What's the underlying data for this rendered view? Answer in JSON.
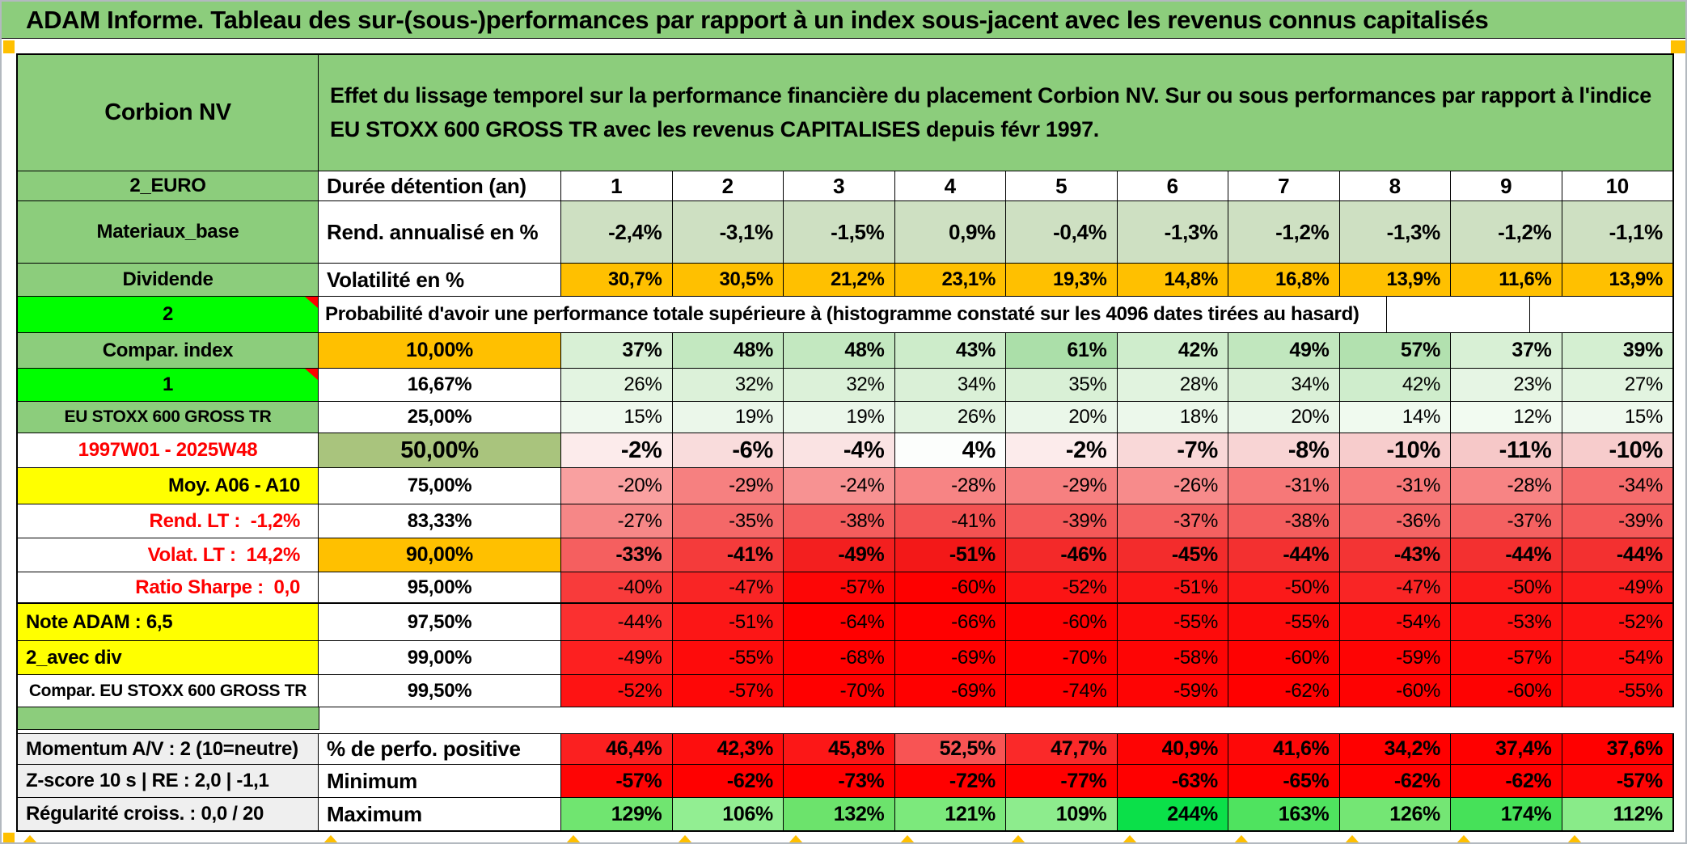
{
  "title": "ADAM Informe. Tableau des sur-(sous-)performances par rapport à un index sous-jacent avec les revenus connus capitalisés",
  "security": {
    "name": "Corbion NV",
    "description": "Effet du lissage temporel sur la performance financière du placement Corbion NV. Sur ou sous performances par rapport à l'indice EU STOXX 600 GROSS TR avec les revenus CAPITALISES depuis févr 1997."
  },
  "colors": {
    "header_green": "#8ccd7c",
    "bright_green": "#00fe00",
    "orange": "#ffc000",
    "yellow": "#ffff00",
    "olive": "#a9c47d",
    "sage": "#cee0c2",
    "label_gray": "#efefef",
    "red_text": "#fe0000",
    "comment_marker_red": "#ff0000",
    "full_red": "#ff0000",
    "corner_orange": "#ffc000"
  },
  "table": {
    "columns": [
      "1",
      "2",
      "3",
      "4",
      "5",
      "6",
      "7",
      "8",
      "9",
      "10"
    ],
    "rows": [
      {
        "kind": "desc"
      },
      {
        "kind": "header",
        "label": "2_EURO",
        "sub": "Durée détention (an)"
      },
      {
        "kind": "vals",
        "label": "Materiaux_base",
        "sub": "Rend. annualisé en %",
        "vals": [
          "-2,4%",
          "-3,1%",
          "-1,5%",
          "0,9%",
          "-0,4%",
          "-1,3%",
          "-1,2%",
          "-1,3%",
          "-1,2%",
          "-1,1%"
        ],
        "bg": "#cee0c2"
      },
      {
        "kind": "vals",
        "label": "Dividende",
        "sub": "Volatilité en %",
        "vals": [
          "30,7%",
          "30,5%",
          "21,2%",
          "23,1%",
          "19,3%",
          "14,8%",
          "16,8%",
          "13,9%",
          "11,6%",
          "13,9%"
        ],
        "bg": "#ffc000"
      },
      {
        "kind": "prob",
        "label": "2",
        "text": "Probabilité d'avoir une performance totale supérieure à (histogramme constaté sur les 4096 dates tirées au hasard)"
      },
      {
        "kind": "vals",
        "label": "Compar. index",
        "sub": "10,00%",
        "vals": [
          "37%",
          "48%",
          "48%",
          "43%",
          "61%",
          "42%",
          "49%",
          "57%",
          "37%",
          "39%"
        ],
        "bg": [
          "#d8f0d5",
          "#c3e8c0",
          "#c3e8c0",
          "#cdecca",
          "#abdfa9",
          "#cfedcc",
          "#c1e7be",
          "#b2e1af",
          "#d8f0d5",
          "#d4efd1"
        ]
      },
      {
        "kind": "vals",
        "label": "1",
        "sub": "16,67%",
        "vals": [
          "26%",
          "32%",
          "32%",
          "34%",
          "35%",
          "28%",
          "34%",
          "42%",
          "23%",
          "27%"
        ],
        "bg": [
          "#e3f4e1",
          "#dcf1d9",
          "#dcf1d9",
          "#daf0d7",
          "#d9f0d6",
          "#e1f3df",
          "#daf0d7",
          "#cfedcc",
          "#e6f5e4",
          "#e2f4e0"
        ]
      },
      {
        "kind": "vals",
        "label": "EU STOXX 600 GROSS TR",
        "sub": "25,00%",
        "vals": [
          "15%",
          "19%",
          "19%",
          "26%",
          "20%",
          "18%",
          "20%",
          "14%",
          "12%",
          "15%"
        ],
        "bg": [
          "#eff9ee",
          "#ebf7ea",
          "#ebf7ea",
          "#e3f4e1",
          "#eaf7e9",
          "#ecf8eb",
          "#eaf7e9",
          "#f0faef",
          "#f2fbf1",
          "#eff9ee"
        ]
      },
      {
        "kind": "vals",
        "label": "1997W01 - 2025W48",
        "sub": "50,00%",
        "vals": [
          "-2%",
          "-6%",
          "-4%",
          "4%",
          "-2%",
          "-7%",
          "-8%",
          "-10%",
          "-11%",
          "-10%"
        ],
        "bg": [
          "#fcebeb",
          "#f9dcdc",
          "#fae3e3",
          "#fcfefc",
          "#fcebeb",
          "#f9d8d8",
          "#f8d4d4",
          "#f7cccc",
          "#f6c8c8",
          "#f7cccc"
        ]
      },
      {
        "kind": "vals",
        "label": "Moy. A06 - A10",
        "sub": "75,00%",
        "vals": [
          "-20%",
          "-29%",
          "-24%",
          "-28%",
          "-29%",
          "-26%",
          "-31%",
          "-31%",
          "-28%",
          "-34%"
        ],
        "bg": [
          "#f9a0a0",
          "#f68080",
          "#f79292",
          "#f78484",
          "#f68080",
          "#f78b8b",
          "#f67878",
          "#f67878",
          "#f78484",
          "#f56c6c"
        ]
      },
      {
        "kind": "vals",
        "label": "Rend. LT :  -1,2%",
        "sub": "83,33%",
        "vals": [
          "-27%",
          "-35%",
          "-38%",
          "-41%",
          "-39%",
          "-37%",
          "-38%",
          "-36%",
          "-37%",
          "-39%"
        ],
        "bg": [
          "#f68787",
          "#f46868",
          "#f45d5d",
          "#f35252",
          "#f45959",
          "#f46161",
          "#f45d5d",
          "#f46565",
          "#f46161",
          "#f45959"
        ]
      },
      {
        "kind": "vals",
        "label": "Volat. LT :  14,2%",
        "sub": "90,00%",
        "vals": [
          "-33%",
          "-41%",
          "-49%",
          "-51%",
          "-46%",
          "-45%",
          "-44%",
          "-43%",
          "-44%",
          "-44%"
        ],
        "bg": [
          "#f55f5f",
          "#f43b3b",
          "#f31f1f",
          "#f31818",
          "#f32929",
          "#f32c2c",
          "#f33030",
          "#f33434",
          "#f33030",
          "#f33030"
        ]
      },
      {
        "kind": "vals",
        "label": "Ratio Sharpe :  0,0",
        "sub": "95,00%",
        "vals": [
          "-40%",
          "-47%",
          "-57%",
          "-60%",
          "-52%",
          "-51%",
          "-50%",
          "-47%",
          "-50%",
          "-49%"
        ],
        "bg": [
          "#f83b3b",
          "#f92525",
          "#fd0606",
          "#fe0000",
          "#fb1414",
          "#fb1616",
          "#fb1919",
          "#f92525",
          "#fb1919",
          "#fb1c1c"
        ]
      },
      {
        "kind": "vals",
        "label": "Note ADAM : 6,5",
        "sub": "97,50%",
        "vals": [
          "-44%",
          "-51%",
          "-64%",
          "-66%",
          "-60%",
          "-55%",
          "-55%",
          "-54%",
          "-53%",
          "-52%"
        ],
        "bg": [
          "#fb3030",
          "#fc1616",
          "#ff0000",
          "#ff0000",
          "#fe0202",
          "#fd0b0b",
          "#fd0b0b",
          "#fd0e0e",
          "#fd1111",
          "#fd1313"
        ]
      },
      {
        "kind": "vals",
        "label": "2_avec div",
        "sub": "99,00%",
        "vals": [
          "-49%",
          "-55%",
          "-68%",
          "-69%",
          "-70%",
          "-58%",
          "-60%",
          "-59%",
          "-57%",
          "-54%"
        ],
        "bg": [
          "#fd2020",
          "#fe0b0b",
          "#ff0000",
          "#ff0000",
          "#ff0000",
          "#fe0505",
          "#fe0202",
          "#fe0404",
          "#fe0707",
          "#fe0e0e"
        ]
      },
      {
        "kind": "vals",
        "label": "Compar. EU STOXX 600 GROSS TR",
        "sub": "99,50%",
        "vals": [
          "-52%",
          "-57%",
          "-70%",
          "-69%",
          "-74%",
          "-59%",
          "-62%",
          "-60%",
          "-60%",
          "-55%"
        ],
        "bg": [
          "#fe1313",
          "#fe0707",
          "#ff0000",
          "#ff0000",
          "#ff0000",
          "#fe0404",
          "#ff0000",
          "#fe0202",
          "#fe0202",
          "#fe0b0b"
        ]
      },
      {
        "kind": "band"
      },
      {
        "kind": "vals",
        "label": "Momentum A/V : 2 (10=neutre)",
        "sub": "% de perfo. positive",
        "vals": [
          "46,4%",
          "42,3%",
          "45,8%",
          "52,5%",
          "47,7%",
          "40,9%",
          "41,6%",
          "34,2%",
          "37,4%",
          "37,6%"
        ],
        "bg": [
          "#fb2020",
          "#fd0e0e",
          "#fc1717",
          "#f85454",
          "#fa2929",
          "#fe0404",
          "#fe0808",
          "#ff0000",
          "#ff0000",
          "#ff0000"
        ]
      },
      {
        "kind": "vals",
        "label": "Z-score 10 s | RE : 2,0 | -1,1",
        "sub": "Minimum",
        "vals": [
          "-57%",
          "-62%",
          "-73%",
          "-72%",
          "-77%",
          "-63%",
          "-65%",
          "-62%",
          "-62%",
          "-57%"
        ],
        "bg": [
          "#fe0505",
          "#ff0000",
          "#ff0000",
          "#ff0000",
          "#ff0000",
          "#ff0000",
          "#ff0000",
          "#ff0000",
          "#ff0000",
          "#fe0505"
        ]
      },
      {
        "kind": "vals",
        "label": "Régularité croiss. : 0,0 / 20",
        "sub": "Maximum",
        "vals": [
          "129%",
          "106%",
          "132%",
          "121%",
          "109%",
          "244%",
          "163%",
          "126%",
          "174%",
          "112%"
        ],
        "bg": [
          "#70e570",
          "#92ee92",
          "#6ce36c",
          "#7ce97c",
          "#8dec8d",
          "#0be049",
          "#4fe35f",
          "#74e674",
          "#46e159",
          "#89eb89"
        ]
      }
    ]
  }
}
